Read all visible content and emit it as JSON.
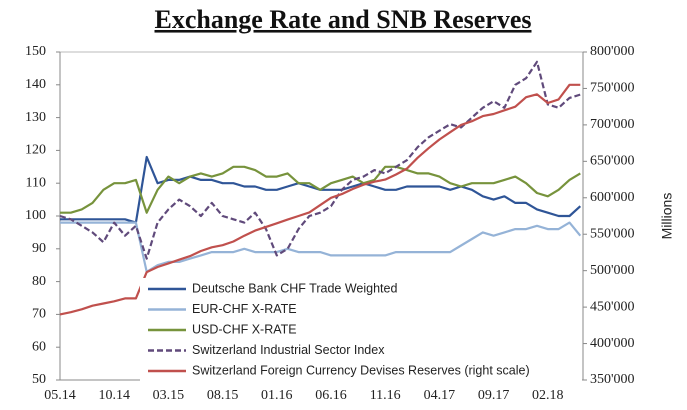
{
  "chart_data": {
    "type": "line",
    "title": "Exchange Rate and SNB Reserves",
    "y2_label": "Millions",
    "categories": [
      "05.14",
      null,
      null,
      null,
      null,
      "10.14",
      null,
      null,
      null,
      null,
      "03.15",
      null,
      null,
      null,
      null,
      "08.15",
      null,
      null,
      null,
      null,
      "01.16",
      null,
      null,
      null,
      null,
      "06.16",
      null,
      null,
      null,
      null,
      "11.16",
      null,
      null,
      null,
      null,
      "04.17",
      null,
      null,
      null,
      null,
      "09.17",
      null,
      null,
      null,
      null,
      "02.18",
      null,
      null,
      null
    ],
    "ylim": [
      50,
      150
    ],
    "yticks": [
      50,
      60,
      70,
      80,
      90,
      100,
      110,
      120,
      130,
      140,
      150
    ],
    "y2lim": [
      350000,
      800000
    ],
    "y2ticks": [
      {
        "value": 350000,
        "label": "350'000"
      },
      {
        "value": 400000,
        "label": "400'000"
      },
      {
        "value": 450000,
        "label": "450'000"
      },
      {
        "value": 500000,
        "label": "500'000"
      },
      {
        "value": 550000,
        "label": "550'000"
      },
      {
        "value": 600000,
        "label": "600'000"
      },
      {
        "value": 650000,
        "label": "650'000"
      },
      {
        "value": 700000,
        "label": "700'000"
      },
      {
        "value": 750000,
        "label": "750'000"
      },
      {
        "value": 800000,
        "label": "800'000"
      }
    ],
    "grid": false,
    "legend": "lower center",
    "series": [
      {
        "name": "Deutsche Bank CHF Trade Weighted",
        "color": "#2f5597",
        "style": "solid",
        "values": [
          99,
          99,
          99,
          99,
          99,
          99,
          99,
          98,
          118,
          110,
          111,
          111,
          112,
          111,
          111,
          110,
          110,
          109,
          109,
          108,
          108,
          109,
          110,
          109,
          108,
          108,
          108,
          109,
          110,
          109,
          108,
          108,
          109,
          109,
          109,
          109,
          108,
          109,
          108,
          106,
          105,
          106,
          104,
          104,
          102,
          101,
          100,
          100,
          103
        ]
      },
      {
        "name": "EUR-CHF X-RATE",
        "color": "#95b3d7",
        "style": "solid",
        "values": [
          98,
          98,
          98,
          98,
          98,
          98,
          98,
          98,
          83,
          85,
          86,
          86,
          87,
          88,
          89,
          89,
          89,
          90,
          89,
          89,
          89,
          90,
          89,
          89,
          89,
          88,
          88,
          88,
          88,
          88,
          88,
          89,
          89,
          89,
          89,
          89,
          89,
          91,
          93,
          95,
          94,
          95,
          96,
          96,
          97,
          96,
          96,
          98,
          94
        ]
      },
      {
        "name": "USD-CHF X-RATE",
        "color": "#77933c",
        "style": "solid",
        "values": [
          101,
          101,
          102,
          104,
          108,
          110,
          110,
          111,
          101,
          108,
          112,
          110,
          112,
          113,
          112,
          113,
          115,
          115,
          114,
          112,
          112,
          113,
          110,
          110,
          108,
          110,
          111,
          112,
          110,
          111,
          115,
          115,
          114,
          113,
          113,
          112,
          110,
          109,
          110,
          110,
          110,
          111,
          112,
          110,
          107,
          106,
          108,
          111,
          113
        ]
      },
      {
        "name": "Switzerland Industrial Sector Index",
        "color": "#604a7b",
        "style": "dashed",
        "values": [
          100,
          99,
          97,
          95,
          92,
          98,
          94,
          97,
          87,
          98,
          102,
          105,
          103,
          100,
          104,
          100,
          99,
          98,
          101,
          96,
          88,
          90,
          96,
          100,
          101,
          103,
          108,
          111,
          112,
          114,
          113,
          115,
          117,
          121,
          124,
          126,
          128,
          127,
          130,
          133,
          135,
          133,
          140,
          142,
          147,
          134,
          133,
          136,
          137
        ]
      },
      {
        "name": "Switzerland Foreign Currency Devises Reserves (right scale)",
        "color": "#c0504d",
        "style": "solid",
        "axis": "y2",
        "values": [
          440000,
          443000,
          447000,
          452000,
          455000,
          458000,
          462000,
          462000,
          498000,
          505000,
          510000,
          515000,
          520000,
          527000,
          532000,
          535000,
          540000,
          548000,
          555000,
          560000,
          565000,
          570000,
          575000,
          580000,
          590000,
          600000,
          605000,
          612000,
          618000,
          622000,
          625000,
          632000,
          640000,
          655000,
          668000,
          680000,
          690000,
          700000,
          705000,
          712000,
          715000,
          720000,
          725000,
          738000,
          742000,
          730000,
          735000,
          755000,
          755000
        ]
      }
    ]
  }
}
